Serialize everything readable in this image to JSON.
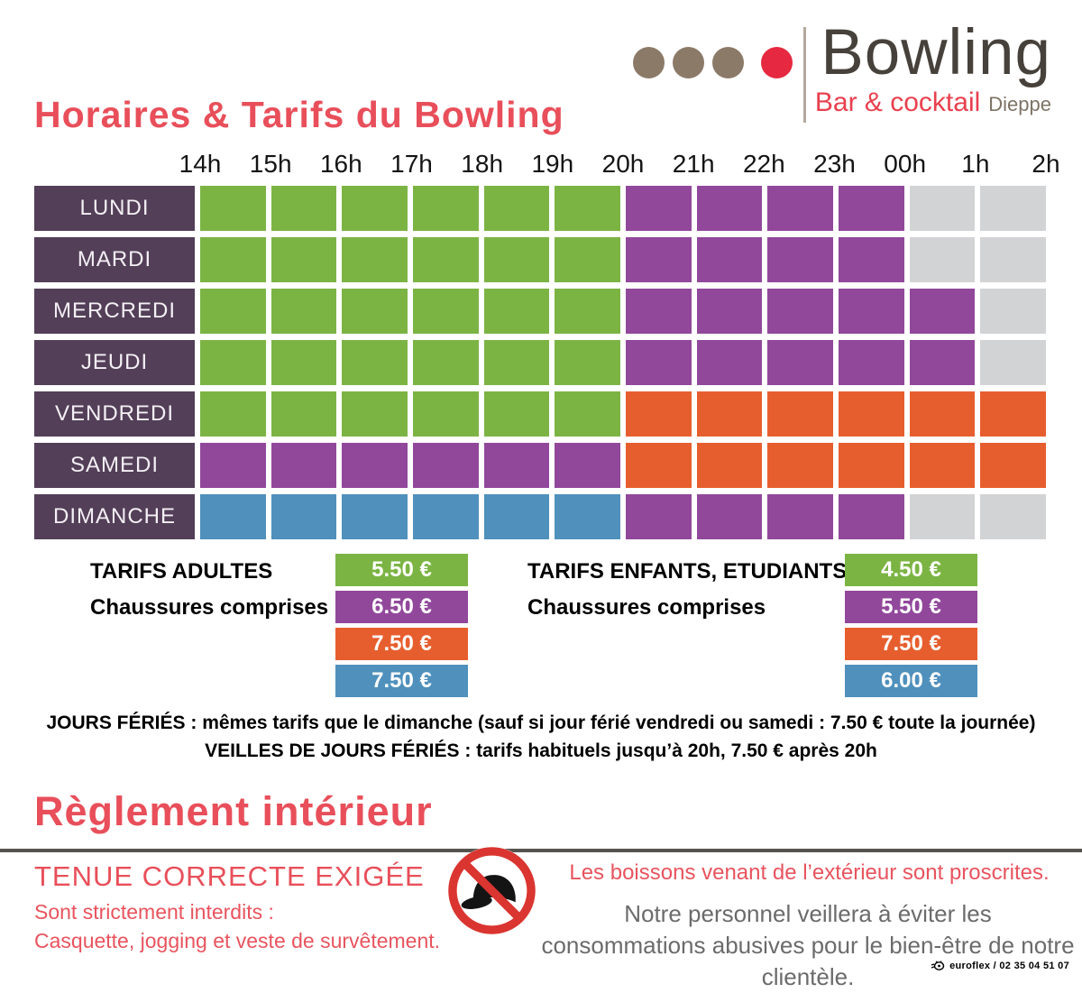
{
  "logo": {
    "name": "Bowling",
    "subtitle": "Bar & cocktail",
    "city": "Dieppe"
  },
  "title": "Horaires & Tarifs du Bowling",
  "colors": {
    "green": "#7cb444",
    "purple": "#91489b",
    "orange": "#e75e2e",
    "blue": "#4f90bc",
    "gray": "#d2d3d5",
    "day_bg": "#533f58",
    "accent_red": "#e84f5a"
  },
  "schedule": {
    "hours": [
      "14h",
      "15h",
      "16h",
      "17h",
      "18h",
      "19h",
      "20h",
      "21h",
      "22h",
      "23h",
      "00h",
      "1h",
      "2h"
    ],
    "rows": [
      {
        "day": "LUNDI",
        "cells": [
          "green",
          "green",
          "green",
          "green",
          "green",
          "green",
          "purple",
          "purple",
          "purple",
          "purple",
          "gray",
          "gray"
        ]
      },
      {
        "day": "MARDI",
        "cells": [
          "green",
          "green",
          "green",
          "green",
          "green",
          "green",
          "purple",
          "purple",
          "purple",
          "purple",
          "gray",
          "gray"
        ]
      },
      {
        "day": "MERCREDI",
        "cells": [
          "green",
          "green",
          "green",
          "green",
          "green",
          "green",
          "purple",
          "purple",
          "purple",
          "purple",
          "purple",
          "gray"
        ]
      },
      {
        "day": "JEUDI",
        "cells": [
          "green",
          "green",
          "green",
          "green",
          "green",
          "green",
          "purple",
          "purple",
          "purple",
          "purple",
          "purple",
          "gray"
        ]
      },
      {
        "day": "VENDREDI",
        "cells": [
          "green",
          "green",
          "green",
          "green",
          "green",
          "green",
          "orange",
          "orange",
          "orange",
          "orange",
          "orange",
          "orange"
        ]
      },
      {
        "day": "SAMEDI",
        "cells": [
          "purple",
          "purple",
          "purple",
          "purple",
          "purple",
          "purple",
          "orange",
          "orange",
          "orange",
          "orange",
          "orange",
          "orange"
        ]
      },
      {
        "day": "DIMANCHE",
        "cells": [
          "blue",
          "blue",
          "blue",
          "blue",
          "blue",
          "blue",
          "purple",
          "purple",
          "purple",
          "purple",
          "gray",
          "gray"
        ]
      }
    ]
  },
  "tariffs": {
    "adults": {
      "title": "TARIFS ADULTES",
      "subtitle": "Chaussures comprises",
      "prices": [
        {
          "color": "green",
          "label": "5.50 €"
        },
        {
          "color": "purple",
          "label": "6.50 €"
        },
        {
          "color": "orange",
          "label": "7.50 €"
        },
        {
          "color": "blue",
          "label": "7.50 €"
        }
      ]
    },
    "children": {
      "title": "TARIFS ENFANTS, ETUDIANTS",
      "subtitle": "Chaussures comprises",
      "prices": [
        {
          "color": "green",
          "label": "4.50 €"
        },
        {
          "color": "purple",
          "label": "5.50 €"
        },
        {
          "color": "orange",
          "label": "7.50 €"
        },
        {
          "color": "blue",
          "label": "6.00 €"
        }
      ]
    }
  },
  "notes": [
    "JOURS FÉRIÉS : mêmes tarifs que le dimanche (sauf si jour férié vendredi ou samedi : 7.50 € toute la journée)",
    "VEILLES DE JOURS FÉRIÉS : tarifs habituels jusqu’à 20h, 7.50 € après 20h"
  ],
  "rules": {
    "title": "Règlement intérieur",
    "dress_code": "TENUE CORRECTE EXIGÉE",
    "forbidden_intro": "Sont strictement interdits :",
    "forbidden_items": "Casquette, jogging et veste de survêtement.",
    "drinks": "Les boissons venant de l’extérieur sont proscrites.",
    "staff": "Notre personnel veillera à éviter les consommations abusives pour le bien-être de notre clientèle."
  },
  "credit": "euroflex / 02 35 04 51 07"
}
